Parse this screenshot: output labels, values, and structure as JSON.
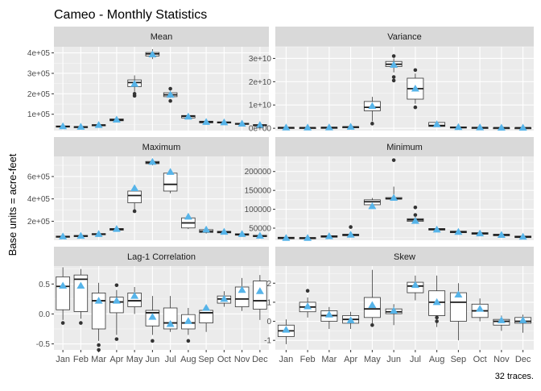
{
  "title": "Cameo - Monthly Statistics",
  "ylabel": "Base units = acre-feet",
  "caption": "32 traces.",
  "months": [
    "Jan",
    "Feb",
    "Mar",
    "Apr",
    "May",
    "Jun",
    "Jul",
    "Aug",
    "Sep",
    "Oct",
    "Nov",
    "Dec"
  ],
  "colors": {
    "panel_bg": "#ebebeb",
    "strip_bg": "#d9d9d9",
    "grid_major": "#ffffff",
    "mean_marker": "#56b4e9",
    "box_line": "#333333",
    "text_dark": "#1a1a1a",
    "tick_text": "#4d4d4d"
  },
  "chart_data": [
    {
      "type": "box",
      "facet": "Mean",
      "ylim": [
        20000,
        430000
      ],
      "ticks": [
        100000,
        200000,
        300000,
        400000
      ],
      "tick_labels": [
        "1e+05",
        "2e+05",
        "3e+05",
        "4e+05"
      ],
      "boxes": [
        {
          "min": 35000,
          "q1": 38000,
          "med": 40000,
          "q3": 43000,
          "max": 46000,
          "mean": 40500,
          "outliers": []
        },
        {
          "min": 33000,
          "q1": 36000,
          "med": 38000,
          "q3": 40000,
          "max": 43000,
          "mean": 38000,
          "outliers": []
        },
        {
          "min": 42000,
          "q1": 45000,
          "med": 47000,
          "q3": 49000,
          "max": 53000,
          "mean": 47000,
          "outliers": []
        },
        {
          "min": 62000,
          "q1": 68000,
          "med": 72000,
          "q3": 77000,
          "max": 84000,
          "mean": 73000,
          "outliers": []
        },
        {
          "min": 210000,
          "q1": 235000,
          "med": 255000,
          "q3": 268000,
          "max": 290000,
          "mean": 248000,
          "outliers": [
            190000,
            200000
          ]
        },
        {
          "min": 370000,
          "q1": 385000,
          "med": 395000,
          "q3": 402000,
          "max": 418000,
          "mean": 392000,
          "outliers": []
        },
        {
          "min": 180000,
          "q1": 186000,
          "med": 195000,
          "q3": 205000,
          "max": 215000,
          "mean": 195000,
          "outliers": [
            225000,
            165000
          ]
        },
        {
          "min": 78000,
          "q1": 82000,
          "med": 90000,
          "q3": 94000,
          "max": 100000,
          "mean": 88000,
          "outliers": []
        },
        {
          "min": 55000,
          "q1": 58000,
          "med": 62000,
          "q3": 66000,
          "max": 70000,
          "mean": 62000,
          "outliers": []
        },
        {
          "min": 54000,
          "q1": 57000,
          "med": 60000,
          "q3": 63000,
          "max": 67000,
          "mean": 60000,
          "outliers": []
        },
        {
          "min": 48000,
          "q1": 51000,
          "med": 53000,
          "q3": 56000,
          "max": 60000,
          "mean": 53500,
          "outliers": []
        },
        {
          "min": 42000,
          "q1": 45000,
          "med": 47000,
          "q3": 49000,
          "max": 52000,
          "mean": 47000,
          "outliers": []
        }
      ]
    },
    {
      "type": "box",
      "facet": "Variance",
      "ylim": [
        -1000000000,
        35000000000
      ],
      "ticks": [
        0,
        10000000000,
        20000000000,
        30000000000
      ],
      "tick_labels": [
        "0e+00",
        "1e+10",
        "2e+10",
        "3e+10"
      ],
      "boxes": [
        {
          "min": 100000000,
          "q1": 200000000,
          "med": 300000000,
          "q3": 400000000,
          "max": 500000000,
          "mean": 300000000,
          "outliers": []
        },
        {
          "min": 100000000,
          "q1": 200000000,
          "med": 250000000,
          "q3": 350000000,
          "max": 450000000,
          "mean": 280000000,
          "outliers": []
        },
        {
          "min": 150000000,
          "q1": 250000000,
          "med": 350000000,
          "q3": 450000000,
          "max": 550000000,
          "mean": 360000000,
          "outliers": []
        },
        {
          "min": 250000000,
          "q1": 400000000,
          "med": 550000000,
          "q3": 700000000,
          "max": 900000000,
          "mean": 580000000,
          "outliers": []
        },
        {
          "min": 3000000000,
          "q1": 7500000000,
          "med": 9000000000,
          "q3": 11500000000,
          "max": 13500000000,
          "mean": 9500000000,
          "outliers": [
            2000000000
          ]
        },
        {
          "min": 24000000000,
          "q1": 26500000000,
          "med": 27500000000,
          "q3": 28700000000,
          "max": 30000000000,
          "mean": 27200000000,
          "outliers": [
            20500000000,
            22000000000,
            31000000000
          ]
        },
        {
          "min": 10500000000,
          "q1": 12500000000,
          "med": 17000000000,
          "q3": 21500000000,
          "max": 23500000000,
          "mean": 17000000000,
          "outliers": [
            9000000000,
            25000000000
          ]
        },
        {
          "min": 600000000,
          "q1": 800000000,
          "med": 1200000000,
          "q3": 2500000000,
          "max": 3000000000,
          "mean": 1700000000,
          "outliers": []
        },
        {
          "min": 100000000,
          "q1": 250000000,
          "med": 400000000,
          "q3": 600000000,
          "max": 800000000,
          "mean": 450000000,
          "outliers": []
        },
        {
          "min": 100000000,
          "q1": 200000000,
          "med": 300000000,
          "q3": 400000000,
          "max": 550000000,
          "mean": 320000000,
          "outliers": []
        },
        {
          "min": 80000000,
          "q1": 150000000,
          "med": 220000000,
          "q3": 300000000,
          "max": 400000000,
          "mean": 230000000,
          "outliers": []
        },
        {
          "min": 70000000,
          "q1": 140000000,
          "med": 200000000,
          "q3": 280000000,
          "max": 380000000,
          "mean": 210000000,
          "outliers": []
        }
      ]
    },
    {
      "type": "box",
      "facet": "Maximum",
      "ylim": [
        30000,
        780000
      ],
      "ticks": [
        200000,
        400000,
        600000
      ],
      "tick_labels": [
        "2e+05",
        "4e+05",
        "6e+05"
      ],
      "boxes": [
        {
          "min": 52000,
          "q1": 58000,
          "med": 62000,
          "q3": 67000,
          "max": 72000,
          "mean": 63000,
          "outliers": []
        },
        {
          "min": 58000,
          "q1": 63000,
          "med": 68000,
          "q3": 73000,
          "max": 80000,
          "mean": 69000,
          "outliers": []
        },
        {
          "min": 72000,
          "q1": 79000,
          "med": 84000,
          "q3": 90000,
          "max": 98000,
          "mean": 85000,
          "outliers": []
        },
        {
          "min": 115000,
          "q1": 120000,
          "med": 128000,
          "q3": 135000,
          "max": 145000,
          "mean": 130000,
          "outliers": []
        },
        {
          "min": 300000,
          "q1": 365000,
          "med": 430000,
          "q3": 470000,
          "max": 510000,
          "mean": 495000,
          "outliers": [
            290000
          ]
        },
        {
          "min": 700000,
          "q1": 715000,
          "med": 725000,
          "q3": 735000,
          "max": 750000,
          "mean": 730000,
          "outliers": []
        },
        {
          "min": 450000,
          "q1": 470000,
          "med": 530000,
          "q3": 630000,
          "max": 650000,
          "mean": 640000,
          "outliers": []
        },
        {
          "min": 130000,
          "q1": 140000,
          "med": 185000,
          "q3": 230000,
          "max": 250000,
          "mean": 240000,
          "outliers": []
        },
        {
          "min": 90000,
          "q1": 100000,
          "med": 110000,
          "q3": 125000,
          "max": 140000,
          "mean": 125000,
          "outliers": []
        },
        {
          "min": 90000,
          "q1": 96000,
          "med": 103000,
          "q3": 110000,
          "max": 120000,
          "mean": 105000,
          "outliers": []
        },
        {
          "min": 68000,
          "q1": 75000,
          "med": 82000,
          "q3": 88000,
          "max": 95000,
          "mean": 85000,
          "outliers": []
        },
        {
          "min": 55000,
          "q1": 62000,
          "med": 68000,
          "q3": 74000,
          "max": 80000,
          "mean": 70000,
          "outliers": []
        }
      ]
    },
    {
      "type": "box",
      "facet": "Minimum",
      "ylim": [
        18000,
        240000
      ],
      "ticks": [
        50000,
        100000,
        150000,
        200000
      ],
      "tick_labels": [
        "50000",
        "100000",
        "150000",
        "200000"
      ],
      "boxes": [
        {
          "min": 20000,
          "q1": 22000,
          "med": 24000,
          "q3": 26000,
          "max": 28000,
          "mean": 24000,
          "outliers": []
        },
        {
          "min": 20000,
          "q1": 22000,
          "med": 24000,
          "q3": 25000,
          "max": 27000,
          "mean": 24000,
          "outliers": []
        },
        {
          "min": 24000,
          "q1": 26000,
          "med": 28000,
          "q3": 30000,
          "max": 32000,
          "mean": 28500,
          "outliers": []
        },
        {
          "min": 28000,
          "q1": 30000,
          "med": 32000,
          "q3": 34000,
          "max": 38000,
          "mean": 32500,
          "outliers": [
            53000
          ]
        },
        {
          "min": 110000,
          "q1": 112000,
          "med": 120000,
          "q3": 125000,
          "max": 130000,
          "mean": 108000,
          "outliers": []
        },
        {
          "min": 125000,
          "q1": 127000,
          "med": 128000,
          "q3": 131000,
          "max": 160000,
          "mean": 130000,
          "outliers": [
            230000
          ]
        },
        {
          "min": 65000,
          "q1": 68000,
          "med": 72000,
          "q3": 75000,
          "max": 80000,
          "mean": 69000,
          "outliers": [
            105000,
            85000
          ]
        },
        {
          "min": 42000,
          "q1": 45000,
          "med": 47000,
          "q3": 49000,
          "max": 52000,
          "mean": 46000,
          "outliers": []
        },
        {
          "min": 35000,
          "q1": 38000,
          "med": 40000,
          "q3": 42000,
          "max": 45000,
          "mean": 40000,
          "outliers": []
        },
        {
          "min": 32000,
          "q1": 34000,
          "med": 36000,
          "q3": 38000,
          "max": 40000,
          "mean": 36000,
          "outliers": []
        },
        {
          "min": 28000,
          "q1": 30000,
          "med": 32000,
          "q3": 34000,
          "max": 36000,
          "mean": 32000,
          "outliers": []
        },
        {
          "min": 23000,
          "q1": 25000,
          "med": 27000,
          "q3": 29000,
          "max": 31000,
          "mean": 27000,
          "outliers": []
        }
      ]
    },
    {
      "type": "box",
      "facet": "Lag-1 Correlation",
      "ylim": [
        -0.6,
        0.8
      ],
      "ticks": [
        -0.5,
        0.0,
        0.5
      ],
      "tick_labels": [
        "-0.5",
        "0.0",
        "0.5"
      ],
      "boxes": [
        {
          "min": -0.1,
          "q1": 0.07,
          "med": 0.46,
          "q3": 0.62,
          "max": 0.78,
          "mean": 0.47,
          "outliers": [
            -0.15
          ]
        },
        {
          "min": -0.08,
          "q1": 0.04,
          "med": 0.58,
          "q3": 0.65,
          "max": 0.75,
          "mean": 0.47,
          "outliers": [
            -0.15
          ]
        },
        {
          "min": -0.45,
          "q1": -0.25,
          "med": 0.22,
          "q3": 0.35,
          "max": 0.52,
          "mean": 0.22,
          "outliers": [
            -0.52,
            -0.6
          ]
        },
        {
          "min": -0.35,
          "q1": 0.02,
          "med": 0.2,
          "q3": 0.28,
          "max": 0.4,
          "mean": 0.22,
          "outliers": [
            -0.42,
            0.48
          ]
        },
        {
          "min": 0.0,
          "q1": 0.12,
          "med": 0.22,
          "q3": 0.35,
          "max": 0.45,
          "mean": 0.3,
          "outliers": []
        },
        {
          "min": -0.35,
          "q1": -0.2,
          "med": 0.02,
          "q3": 0.06,
          "max": 0.3,
          "mean": -0.05,
          "outliers": [
            -0.45
          ]
        },
        {
          "min": -0.3,
          "q1": -0.25,
          "med": -0.15,
          "q3": 0.1,
          "max": 0.3,
          "mean": -0.17,
          "outliers": []
        },
        {
          "min": -0.35,
          "q1": -0.25,
          "med": -0.15,
          "q3": -0.01,
          "max": 0.1,
          "mean": -0.12,
          "outliers": [
            -0.45
          ]
        },
        {
          "min": -0.3,
          "q1": -0.15,
          "med": 0.02,
          "q3": 0.06,
          "max": 0.15,
          "mean": 0.1,
          "outliers": []
        },
        {
          "min": 0.12,
          "q1": 0.18,
          "med": 0.25,
          "q3": 0.3,
          "max": 0.38,
          "mean": 0.25,
          "outliers": []
        },
        {
          "min": 0.05,
          "q1": 0.12,
          "med": 0.25,
          "q3": 0.45,
          "max": 0.6,
          "mean": 0.4,
          "outliers": []
        },
        {
          "min": -0.1,
          "q1": 0.08,
          "med": 0.22,
          "q3": 0.55,
          "max": 0.65,
          "mean": 0.38,
          "outliers": []
        }
      ]
    },
    {
      "type": "box",
      "facet": "Skew",
      "ylim": [
        -1.5,
        2.9
      ],
      "ticks": [
        -1,
        0,
        1,
        2
      ],
      "tick_labels": [
        "-1",
        "0",
        "1",
        "2"
      ],
      "boxes": [
        {
          "min": -1.2,
          "q1": -0.8,
          "med": -0.5,
          "q3": -0.2,
          "max": 0.1,
          "mean": -0.45,
          "outliers": []
        },
        {
          "min": 0.2,
          "q1": 0.5,
          "med": 0.75,
          "q3": 1.0,
          "max": 1.25,
          "mean": 0.78,
          "outliers": [
            1.6
          ]
        },
        {
          "min": -0.4,
          "q1": 0.0,
          "med": 0.3,
          "q3": 0.55,
          "max": 0.75,
          "mean": 0.35,
          "outliers": []
        },
        {
          "min": -0.4,
          "q1": -0.1,
          "med": 0.1,
          "q3": 0.3,
          "max": 0.5,
          "mean": 0.05,
          "outliers": []
        },
        {
          "min": -0.2,
          "q1": 0.2,
          "med": 0.65,
          "q3": 1.25,
          "max": 2.7,
          "mean": 0.85,
          "outliers": [
            -0.2
          ]
        },
        {
          "min": -0.2,
          "q1": 0.4,
          "med": 0.5,
          "q3": 0.65,
          "max": 0.9,
          "mean": 0.55,
          "outliers": []
        },
        {
          "min": 1.1,
          "q1": 1.5,
          "med": 1.85,
          "q3": 2.05,
          "max": 2.4,
          "mean": 1.9,
          "outliers": []
        },
        {
          "min": -0.3,
          "q1": 0.3,
          "med": 1.0,
          "q3": 1.6,
          "max": 2.4,
          "mean": 1.0,
          "outliers": [
            0.0,
            0.2
          ]
        },
        {
          "min": -1.0,
          "q1": 0.0,
          "med": 1.0,
          "q3": 1.5,
          "max": 2.0,
          "mean": 1.4,
          "outliers": []
        },
        {
          "min": 0.0,
          "q1": 0.2,
          "med": 0.55,
          "q3": 0.9,
          "max": 1.2,
          "mean": 0.65,
          "outliers": []
        },
        {
          "min": -0.5,
          "q1": -0.2,
          "med": 0.0,
          "q3": 0.1,
          "max": 0.3,
          "mean": 0.05,
          "outliers": []
        },
        {
          "min": -0.6,
          "q1": -0.1,
          "med": 0.0,
          "q3": 0.2,
          "max": 0.35,
          "mean": 0.05,
          "outliers": []
        }
      ]
    }
  ]
}
